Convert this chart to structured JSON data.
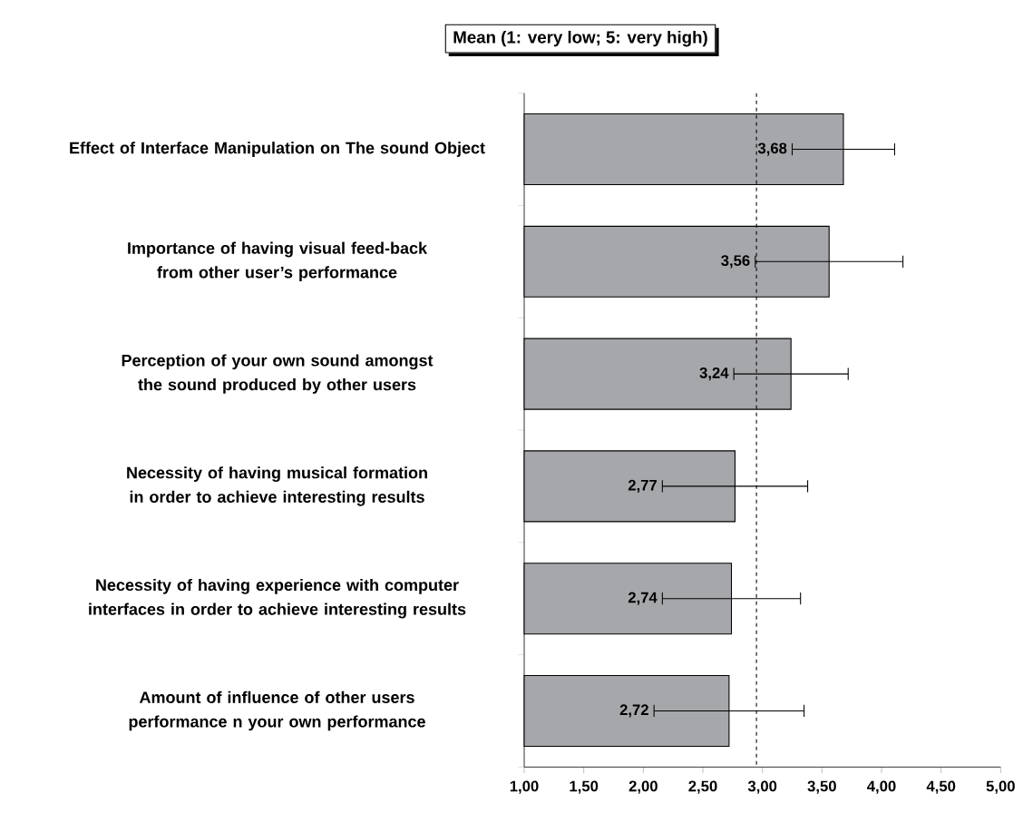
{
  "chart_data": {
    "type": "bar",
    "orientation": "horizontal",
    "title": "Mean (1: very low; 5: very high)",
    "categories": [
      "Effect of Interface Manipulation on The sound Object",
      "Importance of having visual feed-back from other user’s performance",
      "Perception of your own sound amongst the sound produced by other users",
      "Necessity of having musical formation in order to achieve interesting results",
      "Necessity of having experience with computer interfaces in order to achieve interesting results",
      "Amount of influence of other users performance n your own performance"
    ],
    "values": [
      3.68,
      3.56,
      3.24,
      2.77,
      2.74,
      2.72
    ],
    "errors": [
      0.43,
      0.62,
      0.48,
      0.61,
      0.58,
      0.63
    ],
    "value_labels": [
      "3,68",
      "3,56",
      "3,24",
      "2,77",
      "2,74",
      "2,72"
    ],
    "color": "#a6a7ab",
    "xlim": [
      1,
      5
    ],
    "xticks": [
      {
        "value": 1,
        "label": "1,00"
      },
      {
        "value": 1.5,
        "label": "1,50"
      },
      {
        "value": 2,
        "label": "2,00"
      },
      {
        "value": 2.5,
        "label": "2,50"
      },
      {
        "value": 3,
        "label": "3,00"
      },
      {
        "value": 3.5,
        "label": "3,50"
      },
      {
        "value": 4,
        "label": "4,00"
      },
      {
        "value": 4.5,
        "label": "4,50"
      },
      {
        "value": 5,
        "label": "5,00"
      }
    ],
    "ref_lines": [
      {
        "axis": "x",
        "value": 2.95,
        "line_style": "dashed"
      }
    ]
  }
}
